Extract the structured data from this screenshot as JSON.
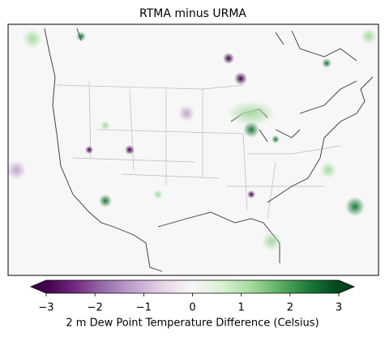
{
  "chart_data": {
    "type": "map",
    "title": "RTMA minus URMA",
    "colorbar": {
      "label": "2 m Dew Point Temperature Difference (Celsius)",
      "lim": [
        -3,
        3
      ],
      "ticks": [
        {
          "value": -3,
          "label": "−3"
        },
        {
          "value": -2,
          "label": "−2"
        },
        {
          "value": -1,
          "label": "−1"
        },
        0,
        1,
        2,
        3
      ],
      "colors": [
        "#40004b",
        "#762a83",
        "#9970ab",
        "#c2a5cf",
        "#e7d4e8",
        "#f7f7f7",
        "#d9f0d3",
        "#a6dba0",
        "#5aae61",
        "#1b7837",
        "#00441b"
      ],
      "extend": "both"
    }
  }
}
